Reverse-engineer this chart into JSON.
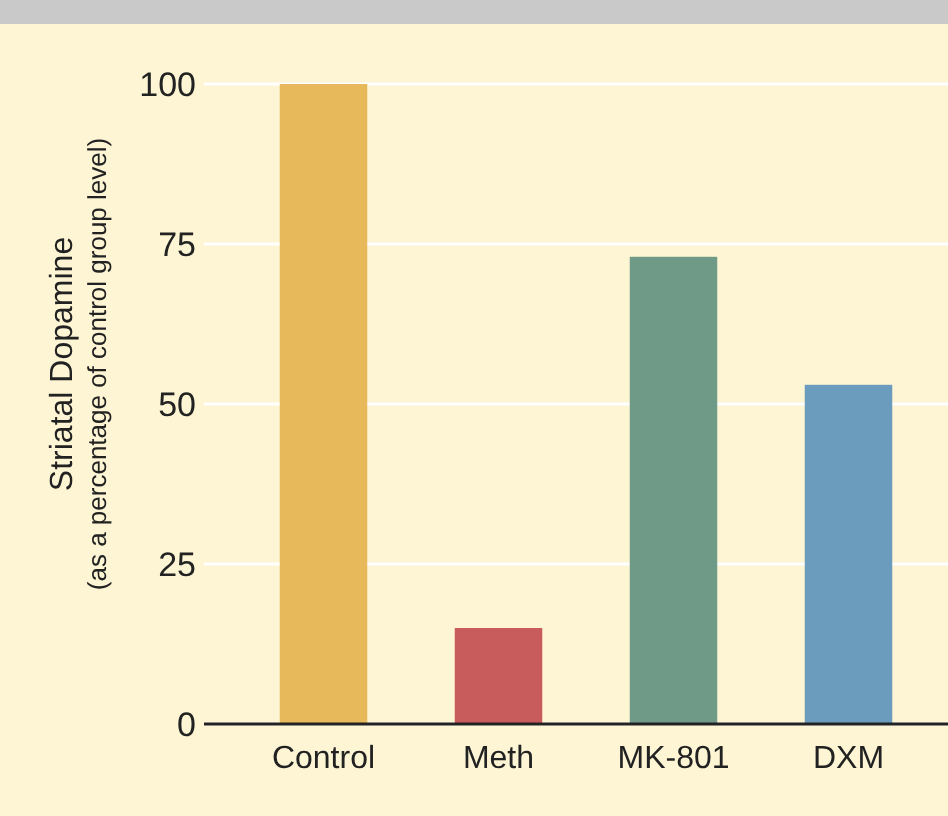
{
  "chart_data": {
    "type": "bar",
    "ylabel": "Striatal Dopamine\n(as a percentage of control group level)",
    "categories": [
      "Control",
      "Meth",
      "MK-801",
      "DXM"
    ],
    "values": [
      100,
      15,
      73,
      53
    ],
    "colors": [
      "#e8b95a",
      "#c85c5c",
      "#6f9a88",
      "#6b9cbd"
    ],
    "ylim": [
      0,
      100
    ],
    "yticks": [
      0,
      25,
      50,
      75,
      100
    ],
    "grid": "y"
  }
}
